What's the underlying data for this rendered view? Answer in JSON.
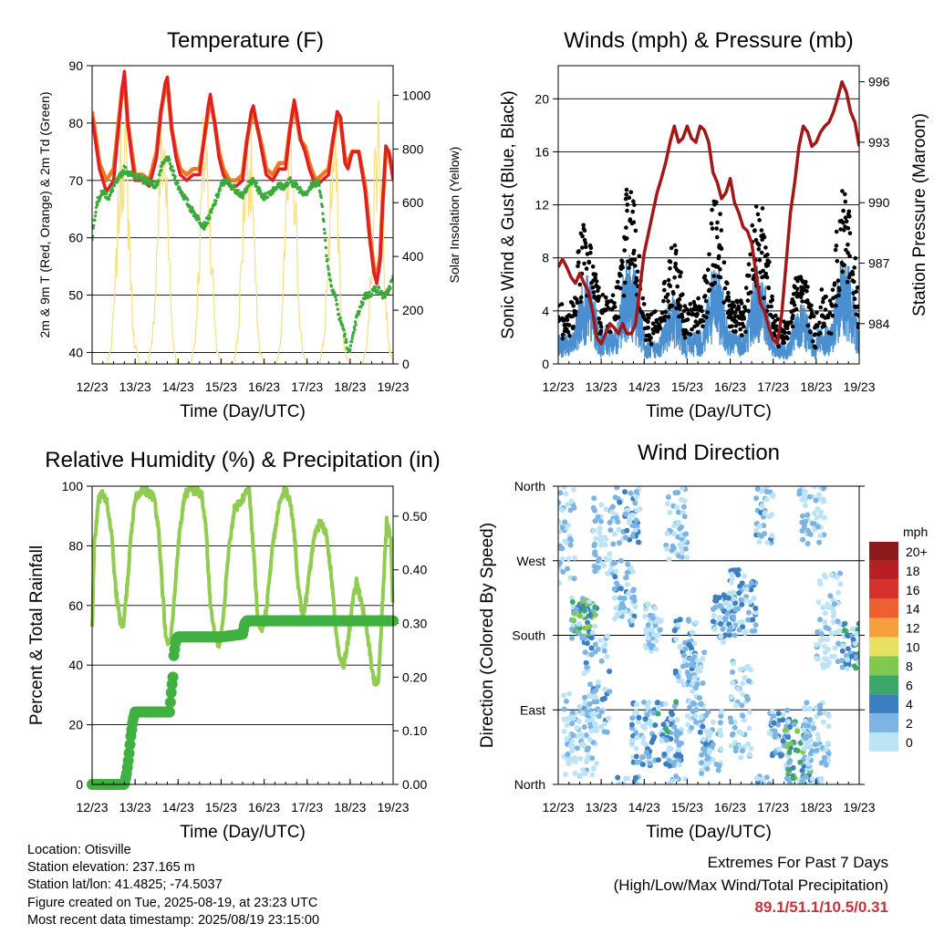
{
  "colors": {
    "t2m": "#e02020",
    "t9m": "#f07820",
    "td": "#3aaa3a",
    "solar": "#f8e080",
    "gust": "#000000",
    "wind": "#4a90d0",
    "pressure": "#a01818",
    "rh": "#90cc50",
    "rain": "#40b040",
    "extremes": "#c8323a"
  },
  "x_ticks": [
    "12/23",
    "13/23",
    "14/23",
    "15/23",
    "16/23",
    "17/23",
    "18/23",
    "19/23"
  ],
  "chart_data": [
    {
      "id": "temperature",
      "type": "line",
      "title": "Temperature (F)",
      "xlabel": "Time (Day/UTC)",
      "ylabel": "2m & 9m T (Red, Orange) & 2m Td (Green)",
      "y2label": "Solar Insolation (Yellow)",
      "x_range_days": [
        12,
        19
      ],
      "ylim": [
        38,
        90
      ],
      "yticks": [
        40,
        50,
        60,
        70,
        80,
        90
      ],
      "y2lim": [
        0,
        1110
      ],
      "y2ticks": [
        0,
        200,
        400,
        600,
        800,
        1000
      ],
      "series": [
        {
          "key": "t2m",
          "axis": "left",
          "x": [
            12.0,
            12.17,
            12.33,
            12.5,
            12.6,
            12.7,
            12.75,
            12.83,
            12.92,
            13.0,
            13.17,
            13.33,
            13.5,
            13.6,
            13.7,
            13.75,
            13.85,
            13.95,
            14.05,
            14.2,
            14.35,
            14.5,
            14.6,
            14.7,
            14.75,
            14.85,
            14.95,
            15.05,
            15.2,
            15.35,
            15.5,
            15.6,
            15.7,
            15.75,
            15.85,
            15.95,
            16.05,
            16.2,
            16.35,
            16.5,
            16.6,
            16.7,
            16.75,
            16.85,
            16.95,
            17.05,
            17.2,
            17.35,
            17.5,
            17.6,
            17.7,
            17.78,
            17.88,
            17.95,
            18.05,
            18.2,
            18.35,
            18.45,
            18.55,
            18.62,
            18.7,
            18.75,
            18.83,
            18.9,
            19.0
          ],
          "y": [
            81,
            72,
            68,
            70,
            78,
            86,
            89,
            80,
            74,
            70,
            70,
            69,
            74,
            82,
            87,
            88,
            79,
            74,
            71,
            70,
            71,
            71,
            77,
            83,
            85,
            80,
            74,
            71,
            69,
            69,
            70,
            77,
            82,
            83,
            79,
            75,
            71,
            70,
            72,
            72,
            79,
            84,
            82,
            77,
            75,
            72,
            69,
            70,
            71,
            77,
            82,
            81,
            73,
            72,
            75,
            75,
            68,
            60,
            54,
            52,
            56,
            65,
            76,
            75,
            70
          ]
        },
        {
          "key": "t9m",
          "axis": "left",
          "x": [
            12.0,
            12.17,
            12.33,
            12.5,
            12.6,
            12.7,
            12.75,
            12.83,
            12.92,
            13.0,
            13.17,
            13.33,
            13.5,
            13.6,
            13.7,
            13.75,
            13.85,
            13.95,
            14.05,
            14.2,
            14.35,
            14.5,
            14.6,
            14.7,
            14.75,
            14.85,
            14.95,
            15.05,
            15.2,
            15.35,
            15.5,
            15.6,
            15.7,
            15.75,
            15.85,
            15.95,
            16.05,
            16.2,
            16.35,
            16.5,
            16.6,
            16.7,
            16.75,
            16.85,
            16.95,
            17.05,
            17.2,
            17.35,
            17.5,
            17.6,
            17.7,
            17.78,
            17.88,
            17.95,
            18.05,
            18.2,
            18.35,
            18.45,
            18.55,
            18.62,
            18.7,
            18.75,
            18.83,
            18.9,
            19.0
          ],
          "y": [
            82,
            73,
            70,
            72,
            79,
            86,
            88,
            80,
            75,
            71,
            71,
            70,
            75,
            82,
            86,
            87,
            79,
            75,
            72,
            71,
            72,
            72,
            77,
            82,
            84,
            80,
            75,
            72,
            70,
            70,
            71,
            77,
            81,
            82,
            79,
            76,
            72,
            71,
            73,
            73,
            79,
            83,
            81,
            77,
            76,
            73,
            70,
            71,
            72,
            77,
            81,
            80,
            74,
            73,
            75,
            75,
            69,
            61,
            55,
            53,
            57,
            65,
            75,
            75,
            71
          ]
        },
        {
          "key": "td",
          "axis": "left",
          "x": [
            12.0,
            12.1,
            12.25,
            12.4,
            12.5,
            12.6,
            12.75,
            12.9,
            13.0,
            13.15,
            13.3,
            13.5,
            13.6,
            13.75,
            13.9,
            14.0,
            14.15,
            14.3,
            14.5,
            14.6,
            14.75,
            14.9,
            15.0,
            15.1,
            15.25,
            15.4,
            15.5,
            15.6,
            15.75,
            15.9,
            16.0,
            16.15,
            16.3,
            16.5,
            16.6,
            16.75,
            16.9,
            17.0,
            17.1,
            17.25,
            17.35,
            17.45,
            17.55,
            17.65,
            17.75,
            17.85,
            17.95,
            18.05,
            18.15,
            18.25,
            18.35,
            18.45,
            18.55,
            18.65,
            18.75,
            18.85,
            18.95,
            19.0
          ],
          "y": [
            60,
            66,
            68,
            67,
            69,
            70,
            72,
            71,
            71,
            70,
            70,
            69,
            72,
            74,
            71,
            69,
            67,
            65,
            63,
            62,
            64,
            67,
            69,
            70,
            69,
            68,
            67,
            69,
            70,
            68,
            67,
            68,
            69,
            69,
            70,
            69,
            68,
            68,
            69,
            70,
            66,
            57,
            52,
            50,
            46,
            44,
            40,
            42,
            46,
            48,
            50,
            50,
            51,
            51,
            50,
            50,
            52,
            53
          ]
        },
        {
          "key": "solar",
          "axis": "right",
          "x": [
            12.0,
            12.2,
            12.35,
            12.45,
            12.55,
            12.65,
            12.75,
            12.85,
            12.95,
            13.1,
            13.3,
            13.4,
            13.5,
            13.58,
            13.65,
            13.7,
            13.75,
            13.85,
            13.95,
            14.1,
            14.3,
            14.4,
            14.5,
            14.58,
            14.65,
            14.72,
            14.8,
            14.9,
            15.0,
            15.1,
            15.3,
            15.4,
            15.5,
            15.58,
            15.65,
            15.72,
            15.8,
            15.9,
            16.0,
            16.1,
            16.3,
            16.4,
            16.5,
            16.58,
            16.65,
            16.72,
            16.8,
            16.9,
            17.0,
            17.1,
            17.3,
            17.4,
            17.5,
            17.58,
            17.65,
            17.72,
            17.8,
            17.9,
            18.0,
            18.1,
            18.3,
            18.4,
            18.5,
            18.58,
            18.65,
            18.72,
            18.8,
            18.9,
            19.0
          ],
          "y": [
            0,
            0,
            0,
            80,
            400,
            900,
            1050,
            700,
            150,
            0,
            0,
            100,
            500,
            900,
            1050,
            950,
            700,
            200,
            0,
            0,
            0,
            120,
            550,
            950,
            1000,
            800,
            400,
            60,
            0,
            0,
            0,
            150,
            600,
            950,
            1000,
            850,
            350,
            50,
            0,
            0,
            0,
            120,
            650,
            950,
            1050,
            850,
            300,
            40,
            0,
            0,
            0,
            130,
            550,
            900,
            960,
            700,
            200,
            30,
            0,
            0,
            0,
            100,
            500,
            900,
            1100,
            900,
            400,
            80,
            0
          ]
        }
      ]
    },
    {
      "id": "winds",
      "type": "scatter",
      "title": "Winds (mph) & Pressure (mb)",
      "xlabel": "Time (Day/UTC)",
      "ylabel": "Sonic Wind & Gust (Blue, Black)",
      "y2label": "Station Pressure (Maroon)",
      "x_range_days": [
        12,
        19
      ],
      "ylim": [
        0,
        22.5
      ],
      "yticks": [
        0,
        4,
        8,
        12,
        16,
        20
      ],
      "y2lim": [
        982.0,
        996.8
      ],
      "y2ticks": [
        984,
        987,
        990,
        993,
        996
      ],
      "series": [
        {
          "key": "pressure",
          "axis": "right",
          "x": [
            12.0,
            12.1,
            12.2,
            12.3,
            12.4,
            12.5,
            12.6,
            12.7,
            12.8,
            12.9,
            13.0,
            13.1,
            13.2,
            13.3,
            13.4,
            13.5,
            13.6,
            13.7,
            13.8,
            13.9,
            14.0,
            14.1,
            14.2,
            14.3,
            14.4,
            14.5,
            14.6,
            14.7,
            14.8,
            14.9,
            15.0,
            15.1,
            15.2,
            15.3,
            15.4,
            15.5,
            15.6,
            15.7,
            15.8,
            15.9,
            16.0,
            16.1,
            16.2,
            16.3,
            16.4,
            16.5,
            16.6,
            16.7,
            16.8,
            16.9,
            17.0,
            17.1,
            17.2,
            17.3,
            17.4,
            17.5,
            17.6,
            17.7,
            17.8,
            17.9,
            18.0,
            18.1,
            18.2,
            18.3,
            18.4,
            18.5,
            18.6,
            18.7,
            18.8,
            18.9,
            19.0
          ],
          "y": [
            986.8,
            987.2,
            986.8,
            986.3,
            986.0,
            986.5,
            986.0,
            985.6,
            984.6,
            983.3,
            983.0,
            983.5,
            984.0,
            983.8,
            983.5,
            984.0,
            983.5,
            983.5,
            984.0,
            985.8,
            987.5,
            988.5,
            989.5,
            990.5,
            991.2,
            992.0,
            993.0,
            993.8,
            993.0,
            993.2,
            993.8,
            993.2,
            993.0,
            993.8,
            993.6,
            993.0,
            991.5,
            991.0,
            990.2,
            990.5,
            991.2,
            990.0,
            989.5,
            988.8,
            988.6,
            988.0,
            986.5,
            985.0,
            984.6,
            983.8,
            983.2,
            983.0,
            984.5,
            987.0,
            989.5,
            991.0,
            992.8,
            993.8,
            993.5,
            992.8,
            993.0,
            993.5,
            993.8,
            994.0,
            994.5,
            995.2,
            996.0,
            995.5,
            994.5,
            994.0,
            992.8
          ]
        }
      ]
    },
    {
      "id": "humidity",
      "type": "line",
      "title": "Relative Humidity (%) & Precipitation (in)",
      "xlabel": "Time (Day/UTC)",
      "ylabel": "Percent & Total Rainfall",
      "x_range_days": [
        12,
        19
      ],
      "ylim": [
        0,
        100
      ],
      "yticks": [
        0,
        20,
        40,
        60,
        80,
        100
      ],
      "y2lim": [
        0,
        0.556
      ],
      "y2ticks": [
        "0.00",
        "0.10",
        "0.20",
        "0.30",
        "0.40",
        "0.50"
      ],
      "series": [
        {
          "key": "rh",
          "axis": "left",
          "x": [
            12.0,
            12.05,
            12.15,
            12.25,
            12.35,
            12.45,
            12.55,
            12.65,
            12.72,
            12.8,
            12.9,
            13.0,
            13.15,
            13.3,
            13.45,
            13.55,
            13.65,
            13.72,
            13.82,
            13.9,
            14.0,
            14.15,
            14.3,
            14.45,
            14.55,
            14.65,
            14.75,
            14.85,
            14.95,
            15.05,
            15.15,
            15.3,
            15.45,
            15.55,
            15.65,
            15.75,
            15.85,
            15.95,
            16.05,
            16.2,
            16.35,
            16.5,
            16.6,
            16.7,
            16.8,
            16.9,
            17.0,
            17.15,
            17.3,
            17.45,
            17.55,
            17.65,
            17.75,
            17.85,
            17.95,
            18.05,
            18.15,
            18.25,
            18.35,
            18.45,
            18.55,
            18.65,
            18.75,
            18.85,
            18.95,
            19.0
          ],
          "y": [
            52,
            80,
            95,
            98,
            94,
            84,
            65,
            55,
            53,
            64,
            82,
            96,
            99,
            98,
            96,
            85,
            62,
            48,
            47,
            60,
            80,
            97,
            99,
            98,
            97,
            85,
            60,
            50,
            47,
            55,
            75,
            92,
            95,
            97,
            99,
            80,
            55,
            52,
            58,
            80,
            94,
            99,
            95,
            85,
            65,
            56,
            64,
            82,
            88,
            84,
            72,
            55,
            42,
            40,
            48,
            60,
            68,
            62,
            55,
            45,
            35,
            33,
            60,
            88,
            82,
            55
          ]
        },
        {
          "key": "rain",
          "axis": "right",
          "x": [
            12.0,
            12.5,
            12.75,
            12.8,
            12.85,
            12.9,
            12.95,
            13.0,
            13.5,
            13.8,
            13.85,
            13.88,
            13.9,
            13.95,
            14.0,
            14.5,
            15.0,
            15.5,
            15.55,
            15.6,
            16.0,
            16.5,
            17.0,
            17.5,
            18.0,
            18.5,
            19.0
          ],
          "y": [
            0.0,
            0.0,
            0.0,
            0.02,
            0.05,
            0.09,
            0.12,
            0.135,
            0.135,
            0.135,
            0.18,
            0.2,
            0.24,
            0.27,
            0.275,
            0.275,
            0.275,
            0.28,
            0.3,
            0.305,
            0.305,
            0.305,
            0.305,
            0.305,
            0.305,
            0.305,
            0.305
          ]
        }
      ]
    },
    {
      "id": "direction",
      "type": "scatter",
      "title": "Wind Direction",
      "xlabel": "Time (Day/UTC)",
      "ylabel": "Direction (Colored By Speed)",
      "x_range_days": [
        12,
        19
      ],
      "yticks": [
        "North",
        "East",
        "South",
        "West",
        "North"
      ],
      "legend": {
        "title": "mph",
        "labels": [
          "20+",
          "18",
          "16",
          "14",
          "12",
          "10",
          "8",
          "6",
          "4",
          "2",
          "0"
        ],
        "colors": [
          "#8b1a1a",
          "#b81e22",
          "#d8302a",
          "#ee6030",
          "#f5a040",
          "#e8e060",
          "#80c850",
          "#3aa86a",
          "#3c7ec0",
          "#7cb4e4",
          "#bde4f5"
        ]
      }
    }
  ],
  "info": {
    "location": "Location: Otisville",
    "elevation": "Station elevation: 237.165 m",
    "latlon": "Station lat/lon: 41.4825; -74.5037",
    "created": "Figure created on Tue, 2025-08-19, at 23:23 UTC",
    "recent": "Most recent data timestamp: 2025/08/19 23:15:00"
  },
  "extremes": {
    "title": "Extremes For Past 7 Days",
    "subtitle": "(High/Low/Max Wind/Total Precipitation)",
    "values": "89.1/51.1/10.5/0.31"
  }
}
